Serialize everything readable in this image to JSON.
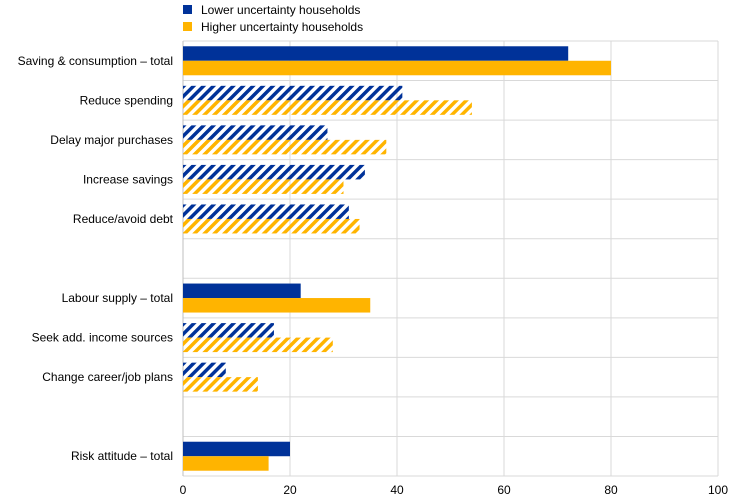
{
  "chart_data": {
    "type": "bar",
    "orientation": "horizontal",
    "categories": [
      "Saving & consumption – total",
      "Reduce spending",
      "Delay major purchases",
      "Increase savings",
      "Reduce/avoid debt",
      "",
      "Labour supply – total",
      "Seek add. income sources",
      "Change career/job plans",
      "",
      "Risk attitude – total"
    ],
    "series": [
      {
        "name": "Lower uncertainty households",
        "color": "#003299",
        "values": [
          72,
          41,
          27,
          34,
          31,
          null,
          22,
          17,
          8,
          null,
          20
        ]
      },
      {
        "name": "Higher uncertainty households",
        "color": "#FFB400",
        "values": [
          80,
          54,
          38,
          30,
          33,
          null,
          35,
          28,
          14,
          null,
          16
        ]
      }
    ],
    "bar_style": [
      "solid",
      "hatched",
      "hatched",
      "hatched",
      "hatched",
      null,
      "solid",
      "hatched",
      "hatched",
      null,
      "solid"
    ],
    "xlim": [
      0,
      100
    ],
    "xticks": [
      0,
      20,
      40,
      60,
      80,
      100
    ],
    "grid": true,
    "legend_position": "top-left"
  }
}
